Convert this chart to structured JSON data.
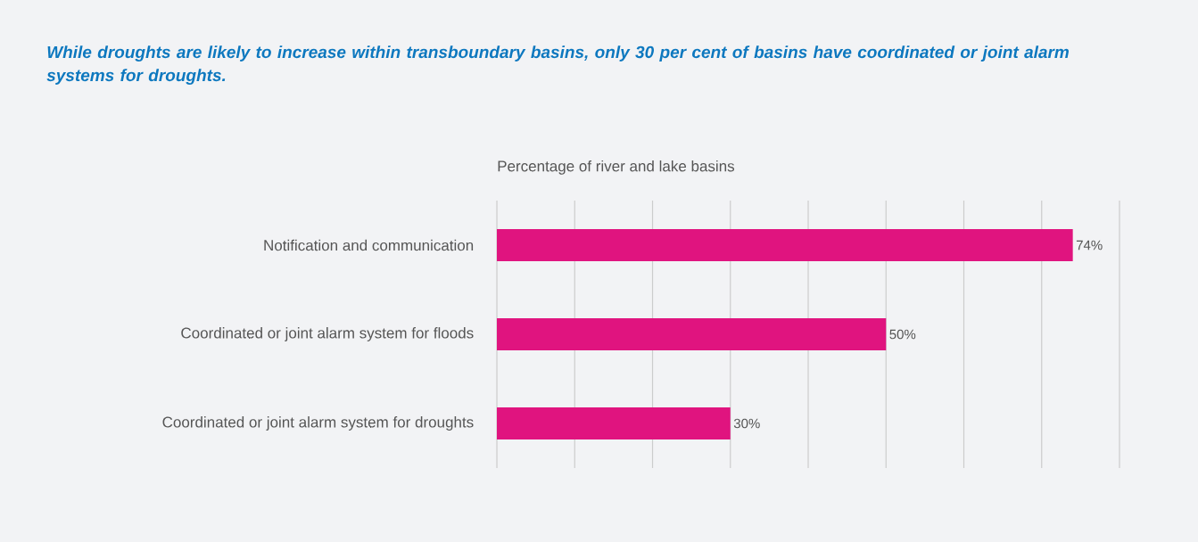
{
  "chart_data": {
    "type": "bar",
    "orientation": "horizontal",
    "title": "While droughts are likely to increase within transboundary basins, only 30 per cent of basins have coordinated or joint alarm systems for droughts.",
    "xlabel": "Percentage of river and lake basins",
    "categories": [
      "Notification and communication",
      "Coordinated or joint alarm system for floods",
      "Coordinated or joint alarm system for droughts"
    ],
    "values": [
      74,
      50,
      30
    ],
    "value_labels": [
      "74%",
      "50%",
      "30%"
    ],
    "color": "#e0147f",
    "xlim": [
      0,
      80
    ],
    "xticks": [
      {
        "value": 0,
        "label": null
      },
      {
        "value": 10,
        "label": null
      },
      {
        "value": 20,
        "label": null
      },
      {
        "value": 30,
        "label": null
      },
      {
        "value": 40,
        "label": null
      },
      {
        "value": 50,
        "label": null
      },
      {
        "value": 60,
        "label": null
      },
      {
        "value": 70,
        "label": null
      },
      {
        "value": 80,
        "label": null
      }
    ],
    "grid": "x",
    "tick_labels": "y"
  }
}
